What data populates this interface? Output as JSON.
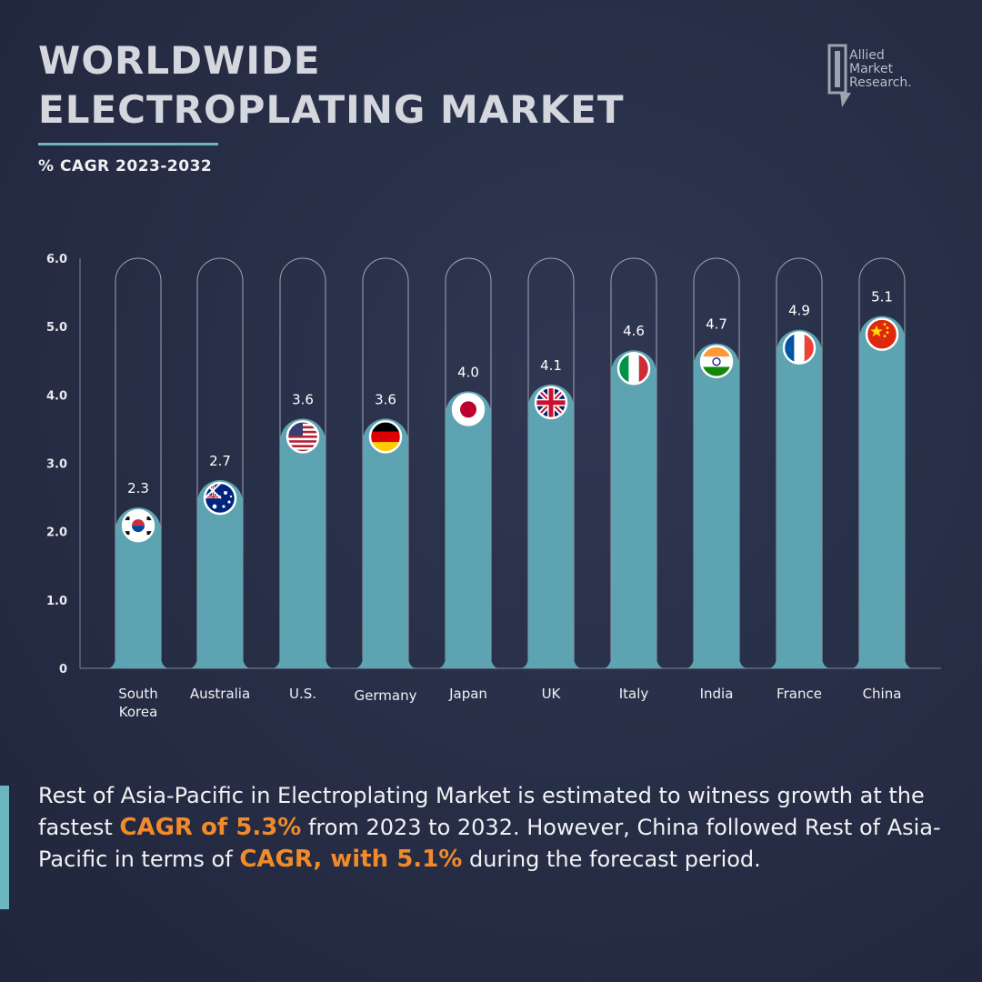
{
  "header": {
    "title_line1": "WORLDWIDE",
    "title_line2": "ELECTROPLATING MARKET",
    "subtitle": "% CAGR 2023-2032"
  },
  "logo": {
    "line1": "Allied",
    "line2": "Market",
    "line3": "Research."
  },
  "chart_data": {
    "type": "bar",
    "ylim": [
      0,
      6
    ],
    "yticks": [
      "0",
      "1.0",
      "2.0",
      "3.0",
      "4.0",
      "5.0",
      "6.0"
    ],
    "ytick_values": [
      0,
      1,
      2,
      3,
      4,
      5,
      6
    ],
    "categories": [
      "South Korea",
      "Australia",
      "U.S.",
      "Germany",
      "Japan",
      "UK",
      "Italy",
      "India",
      "France",
      "China"
    ],
    "category_lines": [
      [
        "South",
        "Korea"
      ],
      [
        "Australia"
      ],
      [
        "U.S."
      ],
      [
        "Germany"
      ],
      [
        "Japan"
      ],
      [
        "UK"
      ],
      [
        "Italy"
      ],
      [
        "India"
      ],
      [
        "France"
      ],
      [
        "China"
      ]
    ],
    "values": [
      2.3,
      2.7,
      3.6,
      3.6,
      4.0,
      4.1,
      4.6,
      4.7,
      4.9,
      5.1
    ],
    "value_labels": [
      "2.3",
      "2.7",
      "3.6",
      "3.6",
      "4.0",
      "4.1",
      "4.6",
      "4.7",
      "4.9",
      "5.1"
    ],
    "flags": [
      "south-korea-flag-icon",
      "australia-flag-icon",
      "us-flag-icon",
      "germany-flag-icon",
      "japan-flag-icon",
      "uk-flag-icon",
      "italy-flag-icon",
      "india-flag-icon",
      "france-flag-icon",
      "china-flag-icon"
    ],
    "bar_color": "#5ea3b1",
    "grid": false
  },
  "footer": {
    "part1": "Rest of Asia-Pacific in Electroplating Market is estimated to witness growth at the fastest ",
    "highlight1": "CAGR of 5.3%",
    "part2": " from 2023 to 2032. However, China  followed Rest of Asia-Pacific in terms of ",
    "highlight2": "CAGR, with 5.1%",
    "part3": " during the forecast period."
  },
  "colors": {
    "background": "#262d45",
    "accent": "#6cb6c2",
    "highlight": "#f08a2a"
  }
}
